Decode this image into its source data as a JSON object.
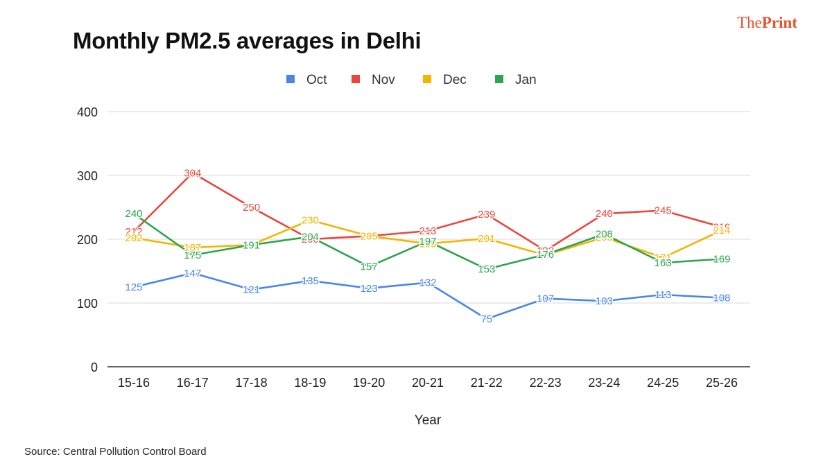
{
  "brand": {
    "part1": "The",
    "part2": "Print"
  },
  "source": "Source: Central Pollution Control Board",
  "colors": {
    "Oct": "#4a86e8",
    "Nov": "#e8473b",
    "Dec": "#f4b400",
    "Jan": "#2ea44f"
  },
  "chart_data": {
    "type": "line",
    "title": "Monthly PM2.5 averages in Delhi",
    "xlabel": "Year",
    "ylabel": "",
    "ylim": [
      0,
      400
    ],
    "yticks": [
      "0",
      "100",
      "200",
      "300",
      "400"
    ],
    "grid": true,
    "legend_position": "top",
    "categories": [
      "15-16",
      "16-17",
      "17-18",
      "18-19",
      "19-20",
      "20-21",
      "21-22",
      "22-23",
      "23-24",
      "24-25",
      "25-26"
    ],
    "series": [
      {
        "name": "Oct",
        "values": [
          125,
          147,
          121,
          135,
          123,
          132,
          75,
          107,
          103,
          113,
          108
        ]
      },
      {
        "name": "Nov",
        "values": [
          212,
          304,
          250,
          200,
          205,
          213,
          239,
          182,
          240,
          245,
          219
        ]
      },
      {
        "name": "Dec",
        "values": [
          202,
          187,
          191,
          230,
          205,
          193,
          201,
          175,
          203,
          171,
          214
        ]
      },
      {
        "name": "Jan",
        "values": [
          240,
          175,
          191,
          204,
          157,
          197,
          153,
          176,
          208,
          163,
          169
        ]
      }
    ]
  }
}
